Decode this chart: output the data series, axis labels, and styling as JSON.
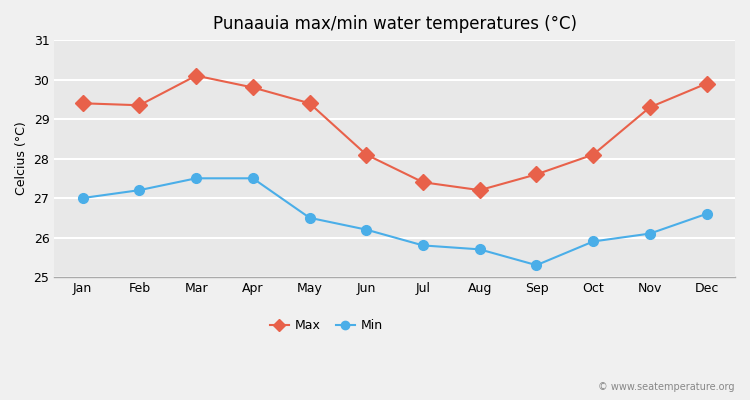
{
  "title": "Punaauia max/min water temperatures (°C)",
  "ylabel": "Celcius (°C)",
  "months": [
    "Jan",
    "Feb",
    "Mar",
    "Apr",
    "May",
    "Jun",
    "Jul",
    "Aug",
    "Sep",
    "Oct",
    "Nov",
    "Dec"
  ],
  "max_values": [
    29.4,
    29.35,
    30.1,
    29.8,
    29.4,
    28.1,
    27.4,
    27.2,
    27.6,
    28.1,
    29.3,
    29.9
  ],
  "min_values": [
    27.0,
    27.2,
    27.5,
    27.5,
    26.5,
    26.2,
    25.8,
    25.7,
    25.3,
    25.9,
    26.1,
    26.6
  ],
  "max_color": "#E8614A",
  "min_color": "#4AAEE8",
  "bg_color": "#f0f0f0",
  "plot_bg_color": "#e8e8e8",
  "grid_color": "#ffffff",
  "ylim": [
    25,
    31
  ],
  "yticks": [
    25,
    26,
    27,
    28,
    29,
    30,
    31
  ],
  "watermark": "© www.seatemperature.org",
  "legend_max": "Max",
  "legend_min": "Min",
  "linewidth": 1.5,
  "markersize_max": 8,
  "markersize_min": 7,
  "title_fontsize": 12,
  "label_fontsize": 9,
  "tick_fontsize": 9,
  "watermark_fontsize": 7
}
